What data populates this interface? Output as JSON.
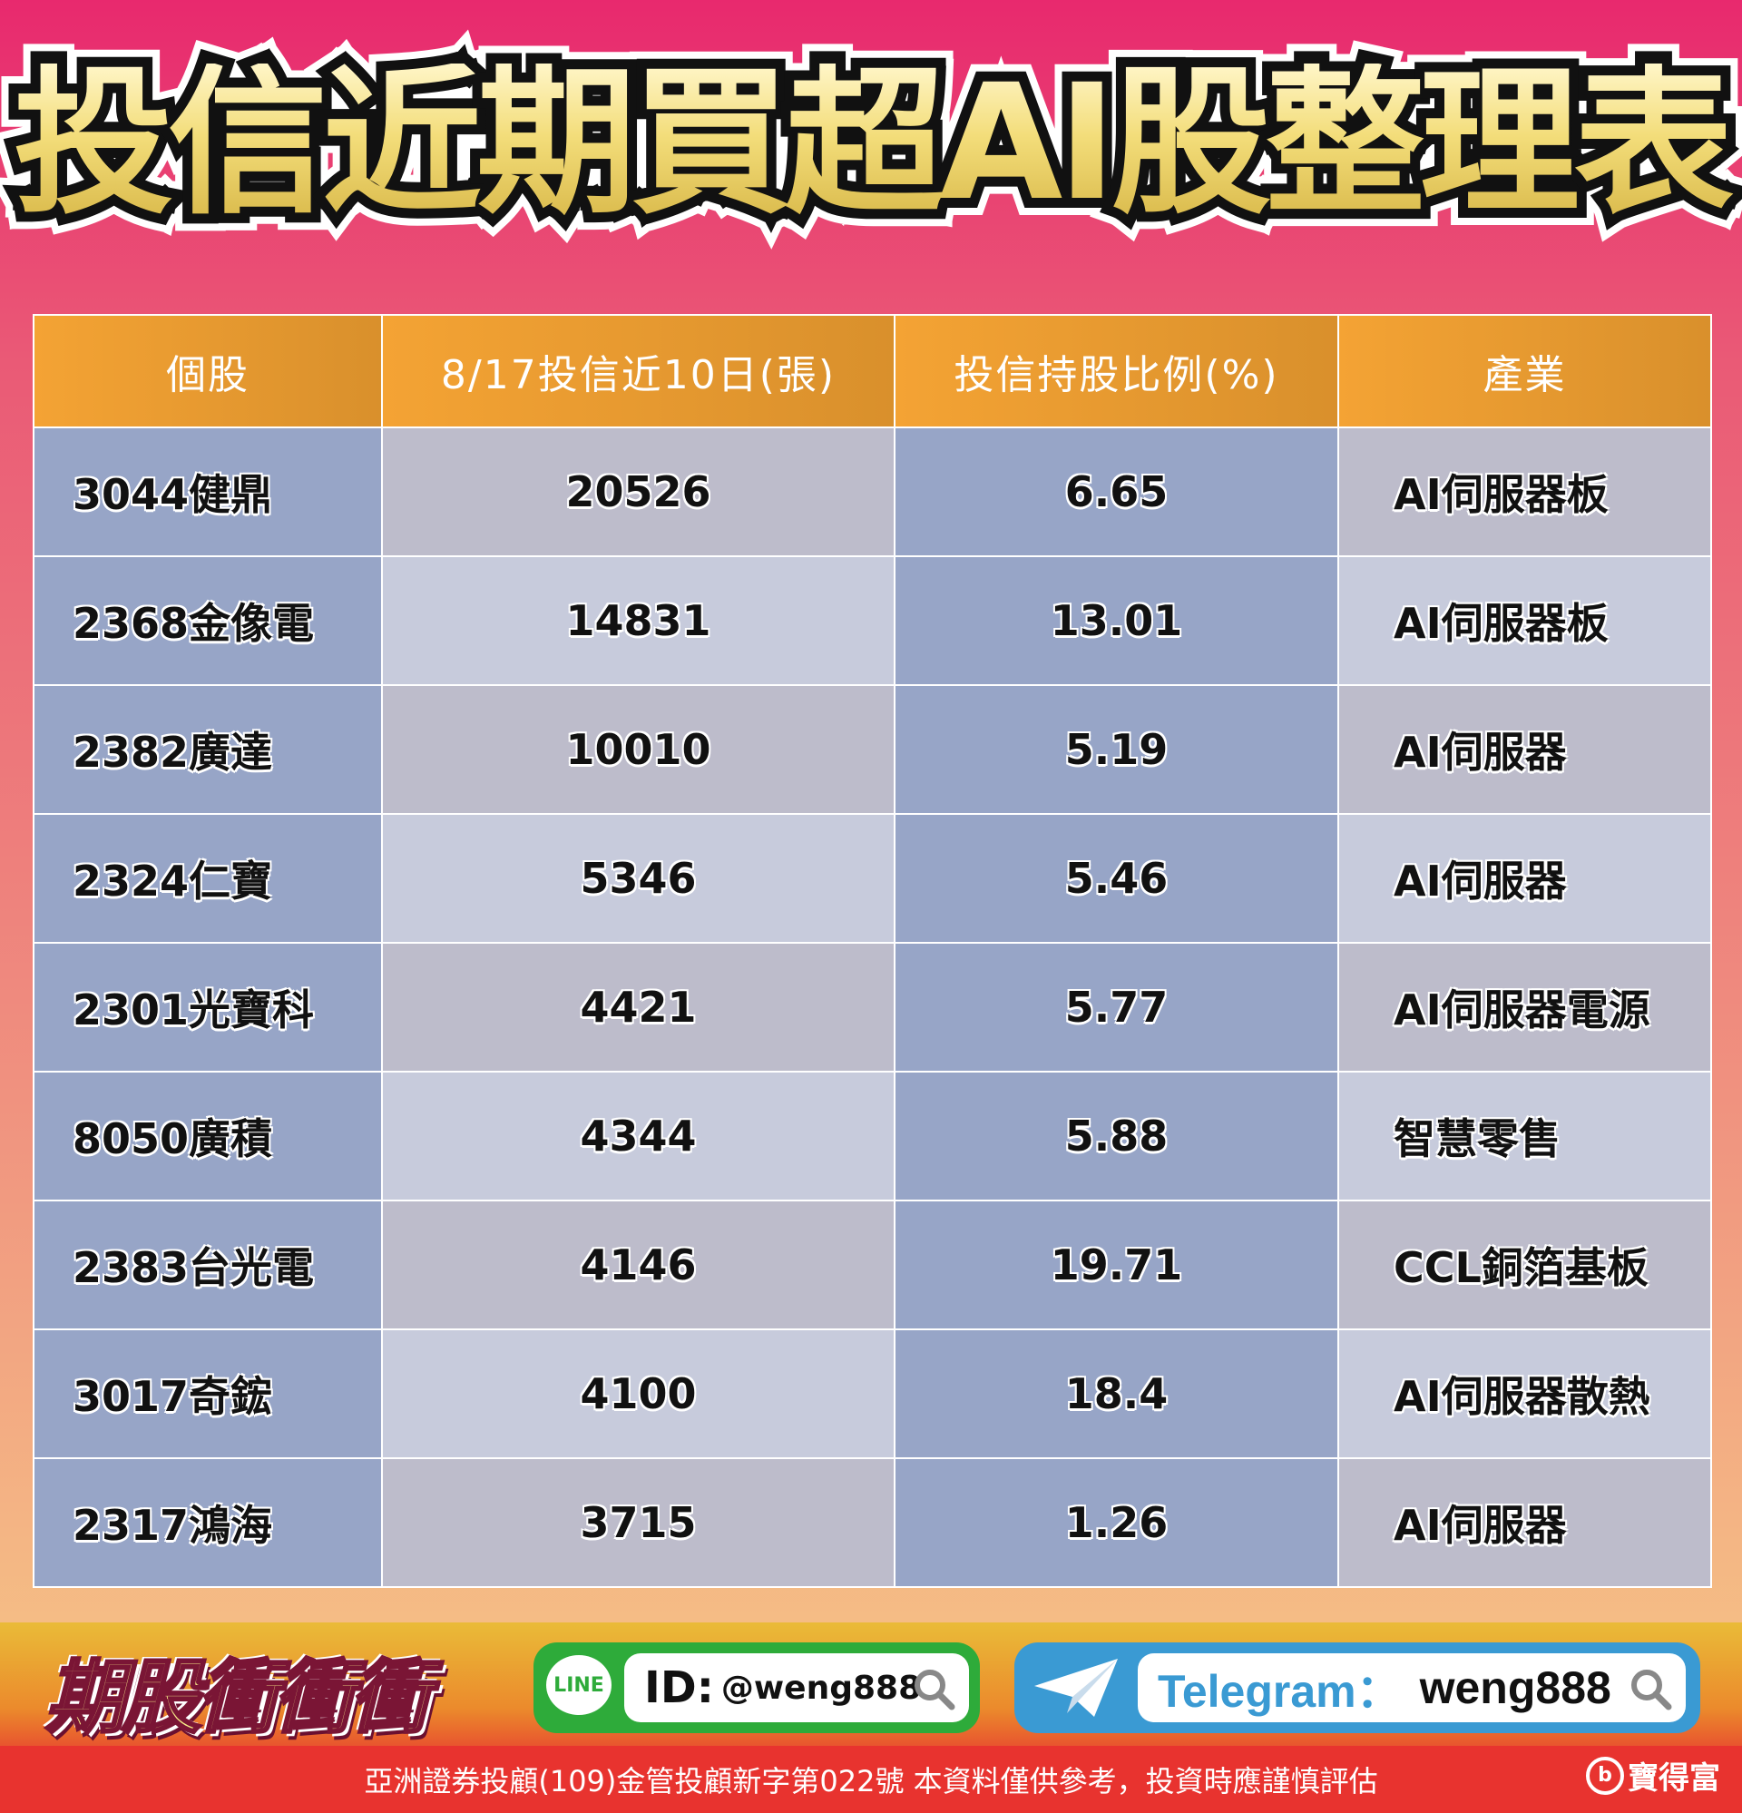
{
  "title": "投信近期買超AI股整理表",
  "table": {
    "headers": [
      "個股",
      "8/17投信近10日(張)",
      "投信持股比例(%)",
      "產業"
    ],
    "rows": [
      [
        "3044健鼎",
        "20526",
        "6.65",
        "AI伺服器板"
      ],
      [
        "2368金像電",
        "14831",
        "13.01",
        "AI伺服器板"
      ],
      [
        "2382廣達",
        "10010",
        "5.19",
        "AI伺服器"
      ],
      [
        "2324仁寶",
        "5346",
        "5.46",
        "AI伺服器"
      ],
      [
        "2301光寶科",
        "4421",
        "5.77",
        "AI伺服器電源"
      ],
      [
        "8050廣積",
        "4344",
        "5.88",
        "智慧零售"
      ],
      [
        "2383台光電",
        "4146",
        "19.71",
        "CCL銅箔基板"
      ],
      [
        "3017奇鋐",
        "4100",
        "18.4",
        "AI伺服器散熱"
      ],
      [
        "2317鴻海",
        "3715",
        "1.26",
        "AI伺服器"
      ]
    ]
  },
  "footer": {
    "brand": "期股衝衝衝",
    "line_badge": "LINE",
    "line_id_label": "ID:",
    "line_id": "@weng888",
    "telegram_label": "Telegram：",
    "telegram_id": "weng888",
    "disclaimer": "亞洲證券投顧(109)金管投顧新字第022號 本資料僅供參考，投資時應謹慎評估",
    "logo": "寶得富"
  },
  "colors": {
    "header": "#f4a334",
    "cell_blue": "#97a5c7",
    "cell_gray": "#bdbccb",
    "cell_light": "#c7cbdc",
    "line": "#2eab3a",
    "telegram": "#3a9ad3",
    "footer_red": "#e8332f"
  }
}
